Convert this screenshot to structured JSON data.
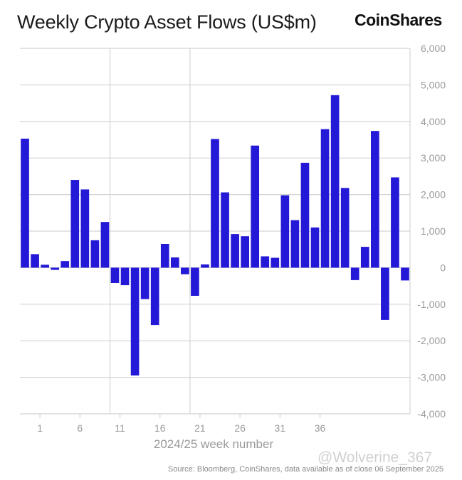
{
  "header": {
    "title": "Weekly Crypto Asset Flows (US$m)",
    "brand": "CoinShares"
  },
  "footer": {
    "source": "Source: Bloomberg, CoinShares, data available as of close 06 September 2025",
    "watermark": "@Wolverine_367"
  },
  "colors": {
    "bar": "#2319d6",
    "grid": "#d4d4d4",
    "axis_text": "#9a9a9a",
    "title": "#1a1a1a"
  },
  "chart_data": {
    "type": "bar",
    "title": "Weekly Crypto Asset Flows (US$m)",
    "xlabel": "2024/25 week number",
    "ylabel": "",
    "ylim": [
      -4000,
      6000
    ],
    "yticks": [
      6000,
      5000,
      4000,
      3000,
      2000,
      1000,
      0,
      -1000,
      -2000,
      -3000,
      -4000
    ],
    "ytick_labels": [
      "6,000",
      "5,000",
      "4,000",
      "3,000",
      "2,000",
      "1,000",
      "0",
      "-1,000",
      "-2,000",
      "-3,000",
      "-4,000"
    ],
    "xtick_labels": [
      "1",
      "6",
      "11",
      "16",
      "21",
      "26",
      "31",
      "36"
    ],
    "xtick_positions": [
      2,
      6,
      10,
      14,
      18,
      22,
      26,
      30
    ],
    "vertical_grid_after_bars": [
      9,
      17
    ],
    "axis_position": "right",
    "grid": true,
    "values": [
      3530,
      370,
      80,
      -60,
      180,
      2400,
      2140,
      750,
      1250,
      -420,
      -480,
      -2950,
      -860,
      -1570,
      650,
      280,
      -180,
      -770,
      90,
      3520,
      2060,
      920,
      860,
      3340,
      310,
      270,
      1980,
      1300,
      2870,
      1100,
      3790,
      4720,
      2180,
      -340,
      570,
      3740,
      -1430,
      2470,
      -350
    ]
  }
}
